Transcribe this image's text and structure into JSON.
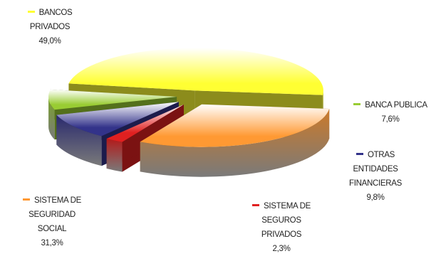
{
  "chart_data": {
    "type": "pie",
    "title": "",
    "style": "3d-exploded",
    "slices": [
      {
        "label": "BANCOS\nPRIVADOS",
        "value": 49.0,
        "value_label": "49,0%",
        "color": "#ffff33"
      },
      {
        "label": "BANCA PUBLICA",
        "value": 7.6,
        "value_label": "7,6%",
        "color": "#99cc33"
      },
      {
        "label": "OTRAS\nENTIDADES\nFINANCIERAS",
        "value": 9.8,
        "value_label": "9,8%",
        "color": "#33338a"
      },
      {
        "label": "SISTEMA DE\nSEGUROS\nPRIVADOS",
        "value": 2.3,
        "value_label": "2,3%",
        "color": "#e02020"
      },
      {
        "label": "SISTEMA DE\nSEGURIDAD\nSOCIAL",
        "value": 31.3,
        "value_label": "31,3%",
        "color": "#ff9933"
      }
    ]
  }
}
